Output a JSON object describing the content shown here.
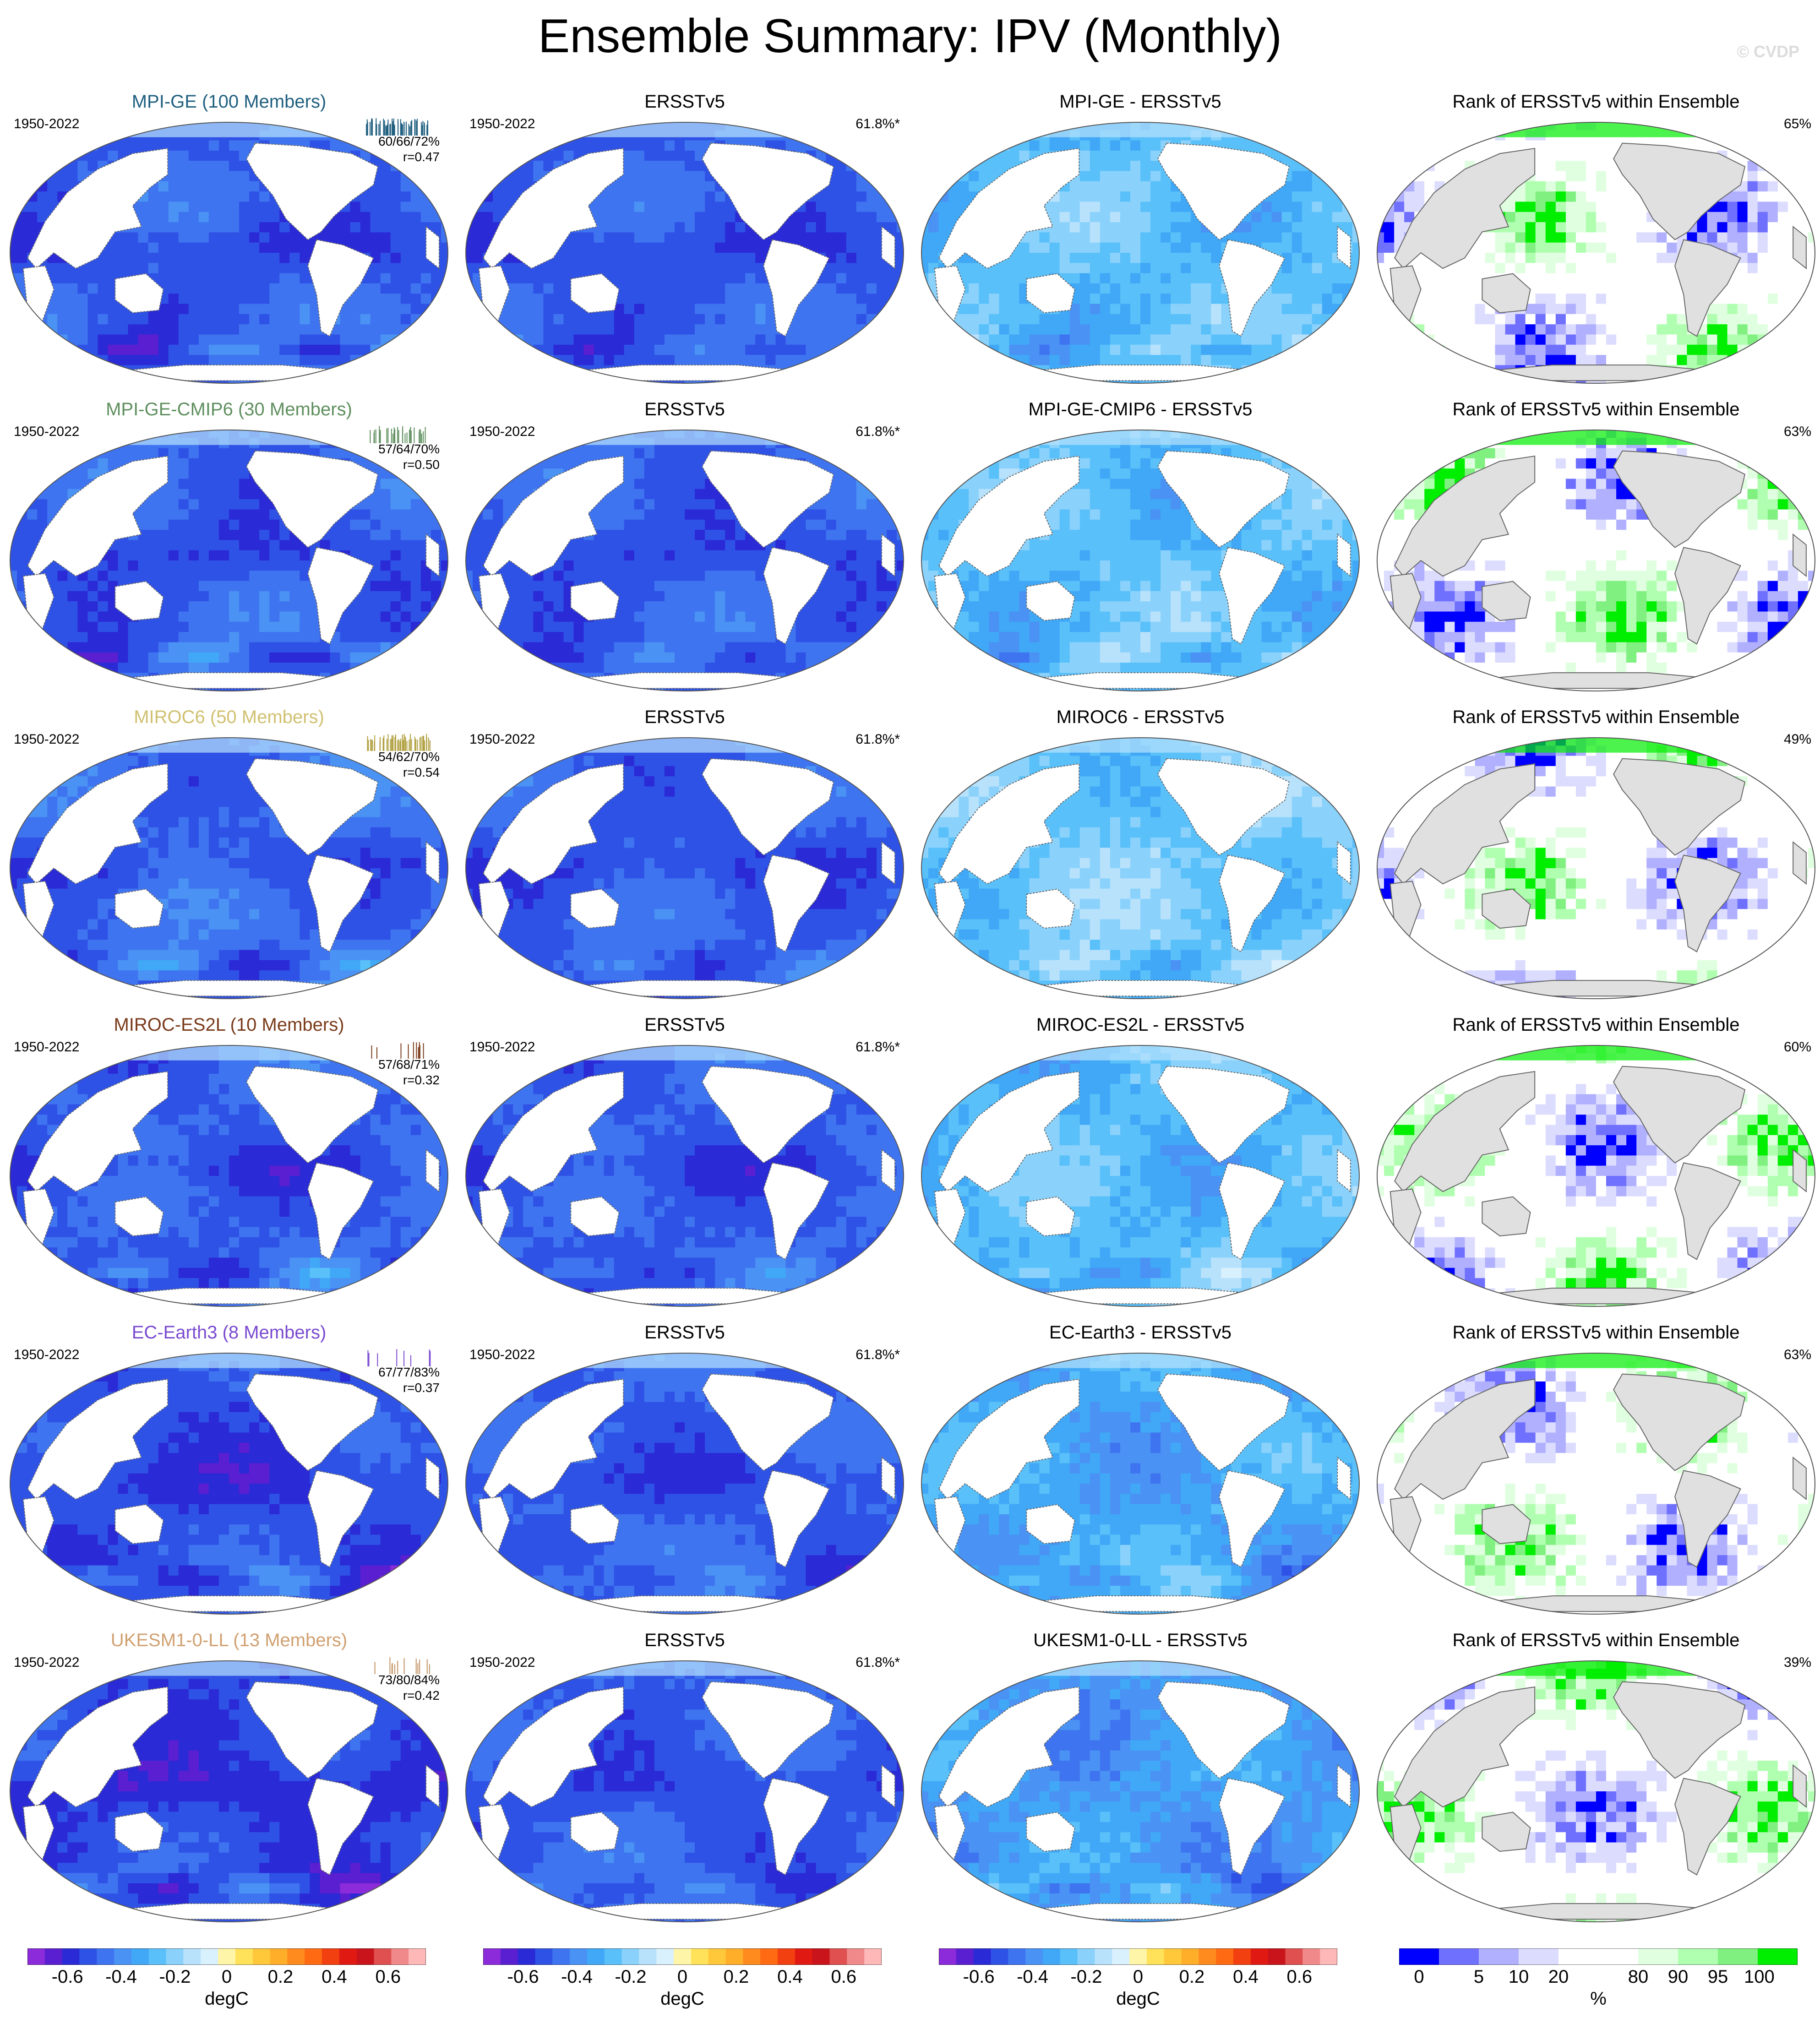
{
  "title": "Ensemble Summary: IPV (Monthly)",
  "watermark": "© CVDP",
  "period": "1950-2022",
  "obs": {
    "name": "ERSSTv5",
    "pct": "61.8%*"
  },
  "rank_title": "Rank of ERSSTv5 within Ensemble",
  "colors": {
    "land": "#e0e0e0",
    "diverging": [
      "#8c2bd9",
      "#5a1fd0",
      "#2a2ad6",
      "#2f52e6",
      "#3f74f0",
      "#4a92f4",
      "#40a8f6",
      "#5ac0fa",
      "#8ad2fb",
      "#b8e2fc",
      "#d9f0fd",
      "#fff5a8",
      "#ffe25a",
      "#ffc83a",
      "#ffae2a",
      "#ff8a1e",
      "#ff6a12",
      "#f24010",
      "#e01a12",
      "#c8141a",
      "#e05050",
      "#f08a8a",
      "#ffb8b8"
    ],
    "rank": [
      "#0000ff",
      "#7070ff",
      "#b0b0ff",
      "#dcdcff",
      "#ffffff",
      "#e0ffe0",
      "#b0ffb0",
      "#80f080",
      "#00ee00"
    ]
  },
  "chart_data": [
    {
      "type": "heatmap",
      "row": 1,
      "kind": "model",
      "title": "MPI-GE (100 Members)",
      "title_color": "#1f5f7f",
      "stats": "60/66/72%",
      "r": "r=0.47",
      "spark_color": "#1f5f7f",
      "bias": -0.25,
      "members": 100
    },
    {
      "type": "heatmap",
      "row": 1,
      "kind": "obs",
      "title": "ERSSTv5",
      "pct": "61.8%*"
    },
    {
      "type": "heatmap",
      "row": 1,
      "kind": "diff",
      "title": "MPI-GE - ERSSTv5",
      "bias": 0.1
    },
    {
      "type": "heatmap",
      "row": 1,
      "kind": "rank",
      "title": "Rank of ERSSTv5 within Ensemble",
      "pct": "65%"
    },
    {
      "type": "heatmap",
      "row": 2,
      "kind": "model",
      "title": "MPI-GE-CMIP6 (30 Members)",
      "title_color": "#5f8f5f",
      "stats": "57/64/70%",
      "r": "r=0.50",
      "spark_color": "#5f8f5f",
      "bias": -0.25,
      "members": 30
    },
    {
      "type": "heatmap",
      "row": 2,
      "kind": "obs",
      "title": "ERSSTv5",
      "pct": "61.8%*"
    },
    {
      "type": "heatmap",
      "row": 2,
      "kind": "diff",
      "title": "MPI-GE-CMIP6 - ERSSTv5",
      "bias": 0.1
    },
    {
      "type": "heatmap",
      "row": 2,
      "kind": "rank",
      "title": "Rank of ERSSTv5 within Ensemble",
      "pct": "63%"
    },
    {
      "type": "heatmap",
      "row": 3,
      "kind": "model",
      "title": "MIROC6 (50 Members)",
      "title_color": "#d0c070",
      "stats": "54/62/70%",
      "r": "r=0.54",
      "spark_color": "#b0a040",
      "bias": -0.22,
      "members": 50
    },
    {
      "type": "heatmap",
      "row": 3,
      "kind": "obs",
      "title": "ERSSTv5",
      "pct": "61.8%*"
    },
    {
      "type": "heatmap",
      "row": 3,
      "kind": "diff",
      "title": "MIROC6 - ERSSTv5",
      "bias": 0.15
    },
    {
      "type": "heatmap",
      "row": 3,
      "kind": "rank",
      "title": "Rank of ERSSTv5 within Ensemble",
      "pct": "49%"
    },
    {
      "type": "heatmap",
      "row": 4,
      "kind": "model",
      "title": "MIROC-ES2L (10 Members)",
      "title_color": "#7a3a1a",
      "stats": "57/68/71%",
      "r": "r=0.32",
      "spark_color": "#7a3a1a",
      "bias": -0.25,
      "members": 10
    },
    {
      "type": "heatmap",
      "row": 4,
      "kind": "obs",
      "title": "ERSSTv5",
      "pct": "61.8%*"
    },
    {
      "type": "heatmap",
      "row": 4,
      "kind": "diff",
      "title": "MIROC-ES2L - ERSSTv5",
      "bias": 0.08
    },
    {
      "type": "heatmap",
      "row": 4,
      "kind": "rank",
      "title": "Rank of ERSSTv5 within Ensemble",
      "pct": "60%"
    },
    {
      "type": "heatmap",
      "row": 5,
      "kind": "model",
      "title": "EC-Earth3 (8 Members)",
      "title_color": "#7a4ad0",
      "stats": "67/77/83%",
      "r": "r=0.37",
      "spark_color": "#7a4ad0",
      "bias": -0.3,
      "members": 8
    },
    {
      "type": "heatmap",
      "row": 5,
      "kind": "obs",
      "title": "ERSSTv5",
      "pct": "61.8%*"
    },
    {
      "type": "heatmap",
      "row": 5,
      "kind": "diff",
      "title": "EC-Earth3 - ERSSTv5",
      "bias": 0.0
    },
    {
      "type": "heatmap",
      "row": 5,
      "kind": "rank",
      "title": "Rank of ERSSTv5 within Ensemble",
      "pct": "63%"
    },
    {
      "type": "heatmap",
      "row": 6,
      "kind": "model",
      "title": "UKESM1-0-LL (13 Members)",
      "title_color": "#d0a070",
      "stats": "73/80/84%",
      "r": "r=0.42",
      "spark_color": "#c09060",
      "bias": -0.32,
      "members": 13
    },
    {
      "type": "heatmap",
      "row": 6,
      "kind": "obs",
      "title": "ERSSTv5",
      "pct": "61.8%*"
    },
    {
      "type": "heatmap",
      "row": 6,
      "kind": "diff",
      "title": "UKESM1-0-LL - ERSSTv5",
      "bias": -0.05
    },
    {
      "type": "heatmap",
      "row": 6,
      "kind": "rank",
      "title": "Rank of ERSSTv5 within Ensemble",
      "pct": "39%"
    }
  ],
  "colorbars": [
    {
      "kind": "diverging",
      "labels": [
        "-0.6",
        "-0.4",
        "-0.2",
        "0",
        "0.2",
        "0.4",
        "0.6"
      ],
      "unit": "degC"
    },
    {
      "kind": "diverging",
      "labels": [
        "-0.6",
        "-0.4",
        "-0.2",
        "0",
        "0.2",
        "0.4",
        "0.6"
      ],
      "unit": "degC"
    },
    {
      "kind": "diverging",
      "labels": [
        "-0.6",
        "-0.4",
        "-0.2",
        "0",
        "0.2",
        "0.4",
        "0.6"
      ],
      "unit": "degC"
    },
    {
      "kind": "rank",
      "labels": [
        "0",
        "5",
        "10",
        "20",
        "80",
        "90",
        "95",
        "100"
      ],
      "unit": "%"
    }
  ]
}
